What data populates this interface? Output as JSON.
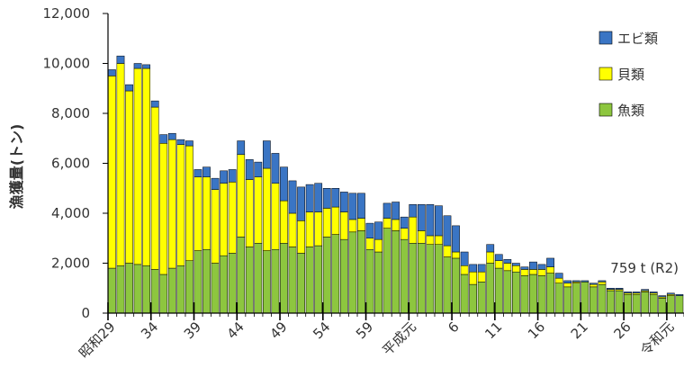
{
  "chart_data": {
    "type": "bar",
    "stacked": true,
    "ylabel": "漁獲量(トン)",
    "ylim": [
      0,
      12000
    ],
    "yticks": [
      0,
      2000,
      4000,
      6000,
      8000,
      10000,
      12000
    ],
    "ytick_labels": [
      "0",
      "2,000",
      "4,000",
      "6,000",
      "8,000",
      "10,000",
      "12,000"
    ],
    "legend_position": "top-right",
    "legend_order": [
      "エビ類",
      "貝類",
      "魚類"
    ],
    "x": [
      "S29",
      "S30",
      "S31",
      "S32",
      "S33",
      "S34",
      "S35",
      "S36",
      "S37",
      "S38",
      "S39",
      "S40",
      "S41",
      "S42",
      "S43",
      "S44",
      "S45",
      "S46",
      "S47",
      "S48",
      "S49",
      "S50",
      "S51",
      "S52",
      "S53",
      "S54",
      "S55",
      "S56",
      "S57",
      "S58",
      "S59",
      "S60",
      "S61",
      "S62",
      "S63",
      "H1",
      "H2",
      "H3",
      "H4",
      "H5",
      "H6",
      "H7",
      "H8",
      "H9",
      "H10",
      "H11",
      "H12",
      "H13",
      "H14",
      "H15",
      "H16",
      "H17",
      "H18",
      "H19",
      "H20",
      "H21",
      "H22",
      "H23",
      "H24",
      "H25",
      "H26",
      "H27",
      "H28",
      "H29",
      "H30",
      "R1",
      "R2"
    ],
    "xtick_labels": [
      {
        "index": 0,
        "label": "昭和29"
      },
      {
        "index": 5,
        "label": "34"
      },
      {
        "index": 10,
        "label": "39"
      },
      {
        "index": 15,
        "label": "44"
      },
      {
        "index": 20,
        "label": "49"
      },
      {
        "index": 25,
        "label": "54"
      },
      {
        "index": 30,
        "label": "59"
      },
      {
        "index": 35,
        "label": "平成元"
      },
      {
        "index": 40,
        "label": "6"
      },
      {
        "index": 45,
        "label": "11"
      },
      {
        "index": 50,
        "label": "16"
      },
      {
        "index": 55,
        "label": "21"
      },
      {
        "index": 60,
        "label": "26"
      },
      {
        "index": 65,
        "label": "令和元"
      }
    ],
    "major_tick_indices": [
      0,
      5,
      10,
      15,
      20,
      25,
      30,
      35,
      40,
      45,
      50,
      55,
      60,
      65
    ],
    "series": [
      {
        "name": "魚類",
        "color": "#8dc63f",
        "values": [
          1800,
          1900,
          2000,
          1950,
          1900,
          1750,
          1550,
          1800,
          1900,
          2100,
          2500,
          2550,
          2000,
          2300,
          2400,
          3050,
          2650,
          2800,
          2500,
          2550,
          2800,
          2650,
          2400,
          2650,
          2700,
          3050,
          3150,
          2950,
          3250,
          3300,
          2550,
          2450,
          3400,
          3300,
          2950,
          2800,
          2800,
          2750,
          2750,
          2250,
          2200,
          1550,
          1150,
          1250,
          2000,
          1800,
          1700,
          1650,
          1500,
          1550,
          1500,
          1600,
          1200,
          1050,
          1200,
          1250,
          1050,
          1150,
          900,
          900,
          750,
          750,
          850,
          750,
          600,
          700,
          700
        ]
      },
      {
        "name": "貝類",
        "color": "#ffff00",
        "values": [
          7700,
          8100,
          6900,
          7850,
          7900,
          6500,
          5250,
          5150,
          4850,
          4600,
          2950,
          2900,
          2950,
          2900,
          2850,
          3300,
          2700,
          2650,
          3300,
          2650,
          1700,
          1350,
          1300,
          1400,
          1350,
          1150,
          1100,
          1100,
          500,
          500,
          450,
          500,
          400,
          450,
          450,
          1050,
          500,
          350,
          350,
          450,
          250,
          350,
          500,
          400,
          450,
          300,
          300,
          250,
          250,
          200,
          250,
          250,
          200,
          150,
          50,
          0,
          100,
          100,
          50,
          50,
          50,
          50,
          50,
          50,
          50,
          50,
          0
        ]
      },
      {
        "name": "エビ類",
        "color": "#3a75c4",
        "values": [
          250,
          300,
          250,
          200,
          150,
          250,
          350,
          250,
          200,
          200,
          300,
          400,
          450,
          500,
          500,
          550,
          800,
          600,
          1100,
          1200,
          1350,
          1300,
          1350,
          1100,
          1150,
          800,
          750,
          800,
          1050,
          1000,
          600,
          700,
          600,
          700,
          450,
          500,
          1050,
          1250,
          1200,
          1200,
          1050,
          550,
          300,
          300,
          300,
          250,
          150,
          100,
          100,
          300,
          200,
          350,
          200,
          100,
          50,
          50,
          50,
          50,
          50,
          50,
          50,
          50,
          50,
          50,
          50,
          50,
          50
        ]
      }
    ],
    "annotations": [
      {
        "text": "759 t (R2)",
        "index": 66
      }
    ]
  }
}
